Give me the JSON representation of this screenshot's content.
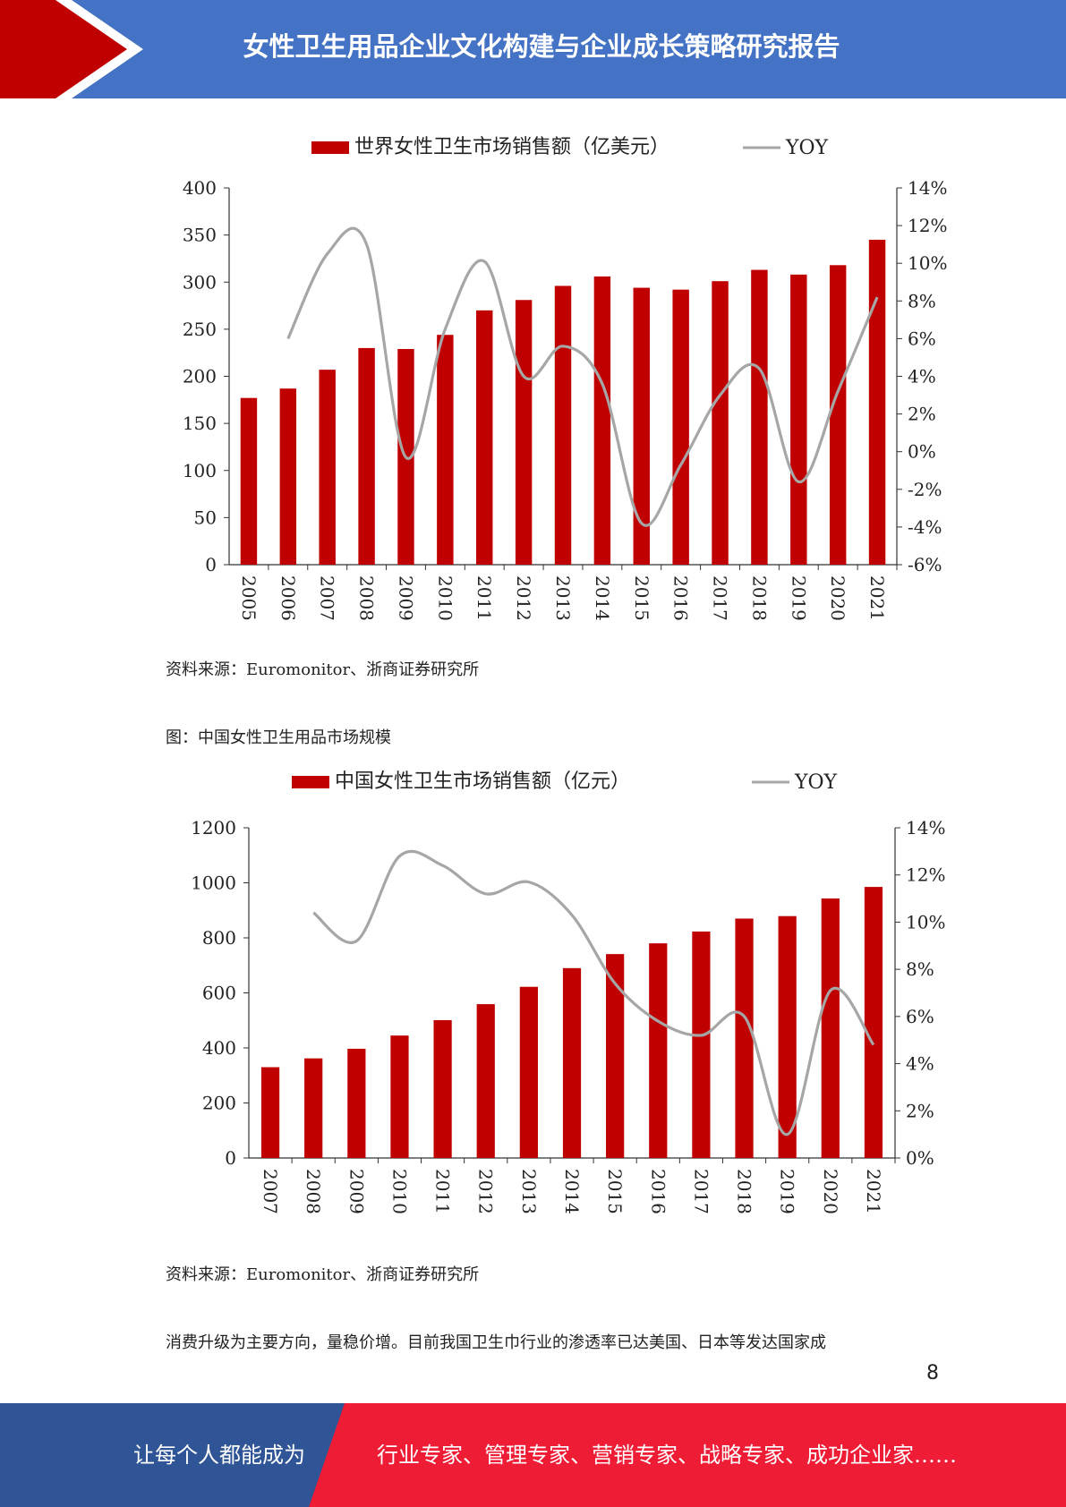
{
  "header": {
    "title": "女性卫生用品企业文化构建与企业成长策略研究报告"
  },
  "colors": {
    "header_blue": "#4472c4",
    "header_red": "#c00000",
    "bar_red": "#c00000",
    "line_gray": "#a6a6a6",
    "footer_blue": "#2f5597",
    "footer_red": "#ee1c35"
  },
  "chart_data": [
    {
      "type": "bar",
      "legend": {
        "bar_label": "世界女性卫生市场销售额（亿美元）",
        "line_label": "YOY",
        "placement": "top"
      },
      "categories": [
        "2005",
        "2006",
        "2007",
        "2008",
        "2009",
        "2010",
        "2011",
        "2012",
        "2013",
        "2014",
        "2015",
        "2016",
        "2017",
        "2018",
        "2019",
        "2020",
        "2021"
      ],
      "series": [
        {
          "name": "世界女性卫生市场销售额（亿美元）",
          "type": "bar",
          "axis": "left",
          "values": [
            177,
            187,
            207,
            230,
            229,
            244,
            270,
            281,
            296,
            306,
            294,
            292,
            301,
            313,
            308,
            318,
            345
          ]
        },
        {
          "name": "YOY",
          "type": "line",
          "axis": "right",
          "values": [
            null,
            6.0,
            10.5,
            11.0,
            -0.3,
            6.5,
            10.1,
            4.0,
            5.6,
            3.6,
            -3.8,
            -0.7,
            3.0,
            4.4,
            -1.6,
            3.2,
            8.2
          ]
        }
      ],
      "y_left": {
        "ylim": [
          0,
          400
        ],
        "ticks": [
          "0",
          "50",
          "100",
          "150",
          "200",
          "250",
          "300",
          "350",
          "400"
        ]
      },
      "y_right": {
        "ylim": [
          -6,
          14
        ],
        "ticks": [
          "-6%",
          "-4%",
          "-2%",
          "0%",
          "2%",
          "4%",
          "6%",
          "8%",
          "10%",
          "12%",
          "14%"
        ]
      },
      "grid": false
    },
    {
      "type": "bar",
      "legend": {
        "bar_label": "中国女性卫生市场销售额（亿元）",
        "line_label": "YOY",
        "placement": "top"
      },
      "categories": [
        "2007",
        "2008",
        "2009",
        "2010",
        "2011",
        "2012",
        "2013",
        "2014",
        "2015",
        "2016",
        "2017",
        "2018",
        "2019",
        "2020",
        "2021"
      ],
      "series": [
        {
          "name": "中国女性卫生市场销售额（亿元）",
          "type": "bar",
          "axis": "left",
          "values": [
            330,
            362,
            397,
            445,
            501,
            559,
            622,
            690,
            741,
            780,
            823,
            870,
            879,
            943,
            985
          ]
        },
        {
          "name": "YOY",
          "type": "line",
          "axis": "right",
          "values": [
            null,
            10.4,
            9.2,
            12.8,
            12.4,
            11.2,
            11.7,
            10.3,
            7.4,
            5.8,
            5.2,
            6.0,
            1.0,
            7.1,
            4.8
          ]
        }
      ],
      "y_left": {
        "ylim": [
          0,
          1200
        ],
        "ticks": [
          "0",
          "200",
          "400",
          "600",
          "800",
          "1000",
          "1200"
        ]
      },
      "y_right": {
        "ylim": [
          0,
          14
        ],
        "ticks": [
          "0%",
          "2%",
          "4%",
          "6%",
          "8%",
          "10%",
          "12%",
          "14%"
        ]
      },
      "grid": false
    }
  ],
  "text": {
    "source_1": "资料来源：Euromonitor、浙商证券研究所",
    "figure_2_title": "图：中国女性卫生用品市场规模",
    "source_2": "资料来源：Euromonitor、浙商证券研究所",
    "body": "消费升级为主要方向，量稳价增。目前我国卫生巾行业的渗透率已达美国、日本等发达国家成",
    "page_number": "8"
  },
  "footer": {
    "left": "让每个人都能成为",
    "right": "行业专家、管理专家、营销专家、战略专家、成功企业家……"
  }
}
